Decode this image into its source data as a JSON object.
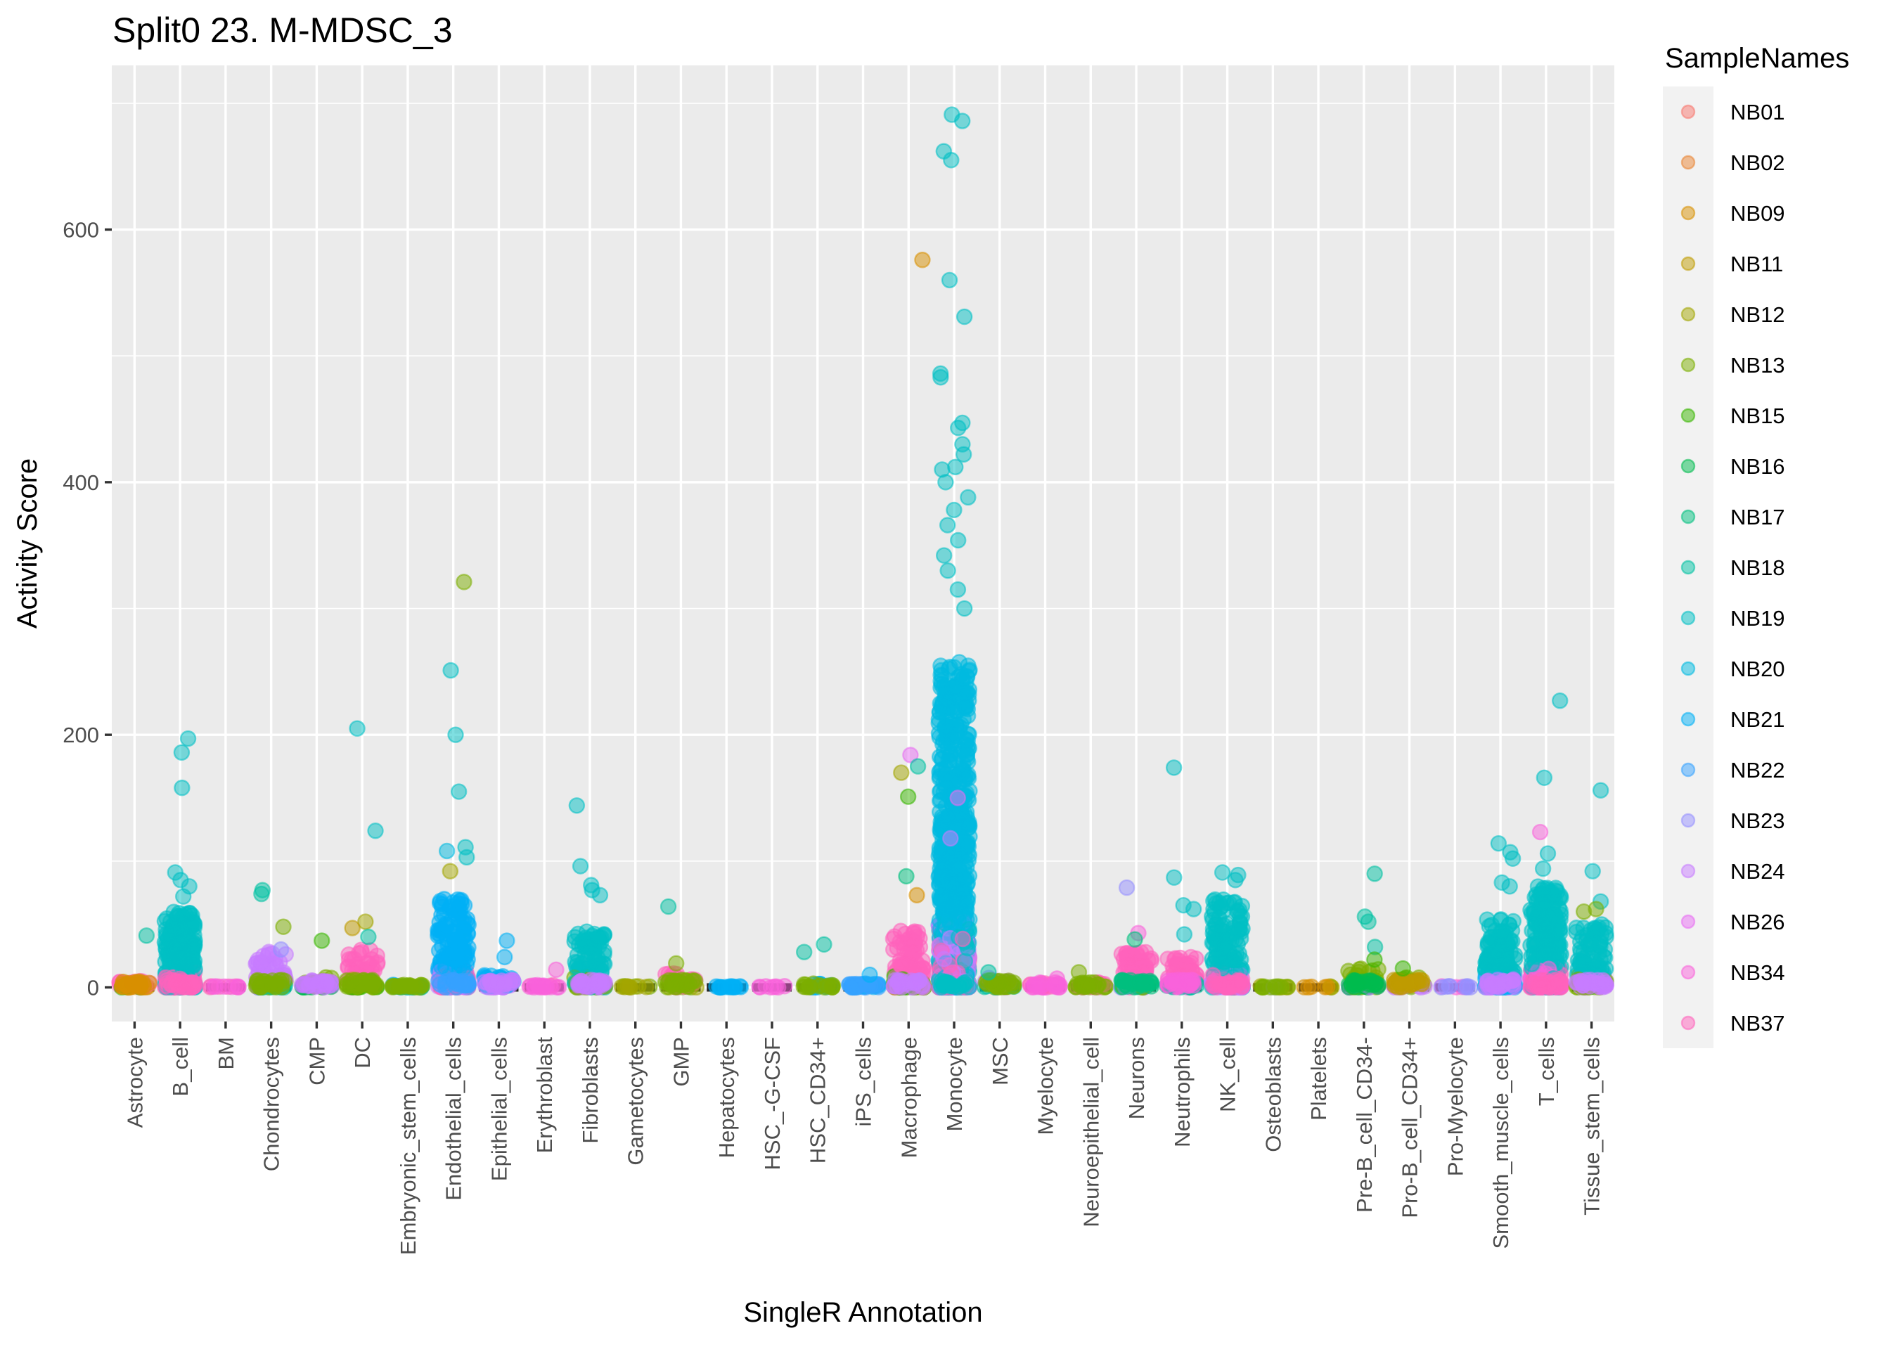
{
  "chart_data": {
    "type": "scatter",
    "subtype": "jitter-strip",
    "title": "Split0 23. M-MDSC_3",
    "xlabel": "SingleR Annotation",
    "ylabel": "Activity Score",
    "ylim": [
      -27,
      730
    ],
    "yticks": [
      0,
      200,
      400,
      600
    ],
    "ytick_labels": [
      "0",
      "200",
      "400",
      "600"
    ],
    "grid": true,
    "legend": {
      "title": "SampleNames",
      "position": "right",
      "entries": [
        {
          "name": "NB01",
          "color": "#F8766D"
        },
        {
          "name": "NB02",
          "color": "#EA8331"
        },
        {
          "name": "NB09",
          "color": "#D89000"
        },
        {
          "name": "NB11",
          "color": "#C09B00"
        },
        {
          "name": "NB12",
          "color": "#A3A500"
        },
        {
          "name": "NB13",
          "color": "#7CAE00"
        },
        {
          "name": "NB15",
          "color": "#39B600"
        },
        {
          "name": "NB16",
          "color": "#00BB4E"
        },
        {
          "name": "NB17",
          "color": "#00BF7D"
        },
        {
          "name": "NB18",
          "color": "#00C1A3"
        },
        {
          "name": "NB19",
          "color": "#00BFC4"
        },
        {
          "name": "NB20",
          "color": "#00BAE0"
        },
        {
          "name": "NB21",
          "color": "#00B0F6"
        },
        {
          "name": "NB22",
          "color": "#35A2FF"
        },
        {
          "name": "NB23",
          "color": "#9590FF"
        },
        {
          "name": "NB24",
          "color": "#C77CFF"
        },
        {
          "name": "NB26",
          "color": "#E76BF3"
        },
        {
          "name": "NB34",
          "color": "#FA62DB"
        },
        {
          "name": "NB37",
          "color": "#FF62BC"
        }
      ]
    },
    "categories": [
      "Astrocyte",
      "B_cell",
      "BM",
      "Chondrocytes",
      "CMP",
      "DC",
      "Embryonic_stem_cells",
      "Endothelial_cells",
      "Epithelial_cells",
      "Erythroblast",
      "Fibroblasts",
      "Gametocytes",
      "GMP",
      "Hepatocytes",
      "HSC_-G-CSF",
      "HSC_CD34+",
      "iPS_cells",
      "Macrophage",
      "Monocyte",
      "MSC",
      "Myelocyte",
      "Neuroepithelial_cell",
      "Neurons",
      "Neutrophils",
      "NK_cell",
      "Osteoblasts",
      "Platelets",
      "Pre-B_cell_CD34-",
      "Pro-B_cell_CD34+",
      "Pro-Myelocyte",
      "Smooth_muscle_cells",
      "T_cells",
      "Tissue_stem_cells"
    ],
    "groups": [
      {
        "category": "Astrocyte",
        "dense_max": 5,
        "n": 40,
        "main": [
          "NB37",
          "NB09",
          "NB15"
        ],
        "outliers": [
          {
            "y": 41,
            "sample": "NB18"
          }
        ]
      },
      {
        "category": "B_cell",
        "dense_max": 60,
        "n": 260,
        "main": [
          "NB19",
          "NB37"
        ],
        "outliers": [
          {
            "y": 197,
            "sample": "NB19"
          },
          {
            "y": 186,
            "sample": "NB19"
          },
          {
            "y": 158,
            "sample": "NB19"
          },
          {
            "y": 91,
            "sample": "NB19"
          },
          {
            "y": 85,
            "sample": "NB19"
          },
          {
            "y": 80,
            "sample": "NB19"
          },
          {
            "y": 72,
            "sample": "NB19"
          }
        ]
      },
      {
        "category": "BM",
        "dense_max": 1,
        "n": 6,
        "main": [
          "NB37",
          "NB34"
        ],
        "outliers": []
      },
      {
        "category": "Chondrocytes",
        "dense_max": 30,
        "n": 70,
        "main": [
          "NB24",
          "NB13",
          "NB18",
          "NB19"
        ],
        "outliers": [
          {
            "y": 77,
            "sample": "NB18"
          },
          {
            "y": 74,
            "sample": "NB18"
          },
          {
            "y": 48,
            "sample": "NB13"
          },
          {
            "y": 30,
            "sample": "NB23"
          }
        ]
      },
      {
        "category": "CMP",
        "dense_max": 8,
        "n": 30,
        "main": [
          "NB13",
          "NB24",
          "NB16"
        ],
        "outliers": [
          {
            "y": 37,
            "sample": "NB15"
          }
        ]
      },
      {
        "category": "DC",
        "dense_max": 30,
        "n": 70,
        "main": [
          "NB37",
          "NB13",
          "NB12",
          "NB15"
        ],
        "outliers": [
          {
            "y": 205,
            "sample": "NB19"
          },
          {
            "y": 124,
            "sample": "NB19"
          },
          {
            "y": 52,
            "sample": "NB12"
          },
          {
            "y": 47,
            "sample": "NB11"
          },
          {
            "y": 40,
            "sample": "NB18"
          }
        ]
      },
      {
        "category": "Embryonic_stem_cells",
        "dense_max": 2,
        "n": 20,
        "main": [
          "NB21",
          "NB13",
          "NB18"
        ],
        "outliers": []
      },
      {
        "category": "Endothelial_cells",
        "dense_max": 70,
        "n": 200,
        "main": [
          "NB21",
          "NB22",
          "NB24",
          "NB37"
        ],
        "outliers": [
          {
            "y": 321,
            "sample": "NB13"
          },
          {
            "y": 251,
            "sample": "NB19"
          },
          {
            "y": 200,
            "sample": "NB19"
          },
          {
            "y": 155,
            "sample": "NB19"
          },
          {
            "y": 111,
            "sample": "NB19"
          },
          {
            "y": 108,
            "sample": "NB20"
          },
          {
            "y": 103,
            "sample": "NB19"
          },
          {
            "y": 92,
            "sample": "NB12"
          }
        ]
      },
      {
        "category": "Epithelial_cells",
        "dense_max": 10,
        "n": 40,
        "main": [
          "NB21",
          "NB24"
        ],
        "outliers": [
          {
            "y": 37,
            "sample": "NB21"
          },
          {
            "y": 24,
            "sample": "NB21"
          }
        ]
      },
      {
        "category": "Erythroblast",
        "dense_max": 2,
        "n": 10,
        "main": [
          "NB37",
          "NB34"
        ],
        "outliers": [
          {
            "y": 14,
            "sample": "NB34"
          }
        ]
      },
      {
        "category": "Fibroblasts",
        "dense_max": 45,
        "n": 130,
        "main": [
          "NB19",
          "NB24",
          "NB13"
        ],
        "outliers": [
          {
            "y": 144,
            "sample": "NB19"
          },
          {
            "y": 96,
            "sample": "NB19"
          },
          {
            "y": 81,
            "sample": "NB19"
          },
          {
            "y": 77,
            "sample": "NB19"
          },
          {
            "y": 73,
            "sample": "NB19"
          }
        ]
      },
      {
        "category": "Gametocytes",
        "dense_max": 1,
        "n": 6,
        "main": [
          "NB13",
          "NB12"
        ],
        "outliers": []
      },
      {
        "category": "GMP",
        "dense_max": 12,
        "n": 30,
        "main": [
          "NB37",
          "NB13",
          "NB12"
        ],
        "outliers": [
          {
            "y": 64,
            "sample": "NB18"
          },
          {
            "y": 19,
            "sample": "NB13"
          }
        ]
      },
      {
        "category": "Hepatocytes",
        "dense_max": 1,
        "n": 8,
        "main": [
          "NB21"
        ],
        "outliers": []
      },
      {
        "category": "HSC_-G-CSF",
        "dense_max": 1,
        "n": 4,
        "main": [
          "NB34"
        ],
        "outliers": []
      },
      {
        "category": "HSC_CD34+",
        "dense_max": 3,
        "n": 15,
        "main": [
          "NB21",
          "NB13"
        ],
        "outliers": [
          {
            "y": 34,
            "sample": "NB18"
          },
          {
            "y": 28,
            "sample": "NB18"
          }
        ]
      },
      {
        "category": "iPS_cells",
        "dense_max": 3,
        "n": 20,
        "main": [
          "NB21",
          "NB22"
        ],
        "outliers": [
          {
            "y": 10,
            "sample": "NB21"
          }
        ]
      },
      {
        "category": "Macrophage",
        "dense_max": 45,
        "n": 160,
        "main": [
          "NB37",
          "NB24",
          "NB13",
          "NB11",
          "NB15"
        ],
        "outliers": [
          {
            "y": 576,
            "sample": "NB09"
          },
          {
            "y": 184,
            "sample": "NB26"
          },
          {
            "y": 175,
            "sample": "NB18"
          },
          {
            "y": 170,
            "sample": "NB12"
          },
          {
            "y": 151,
            "sample": "NB15"
          },
          {
            "y": 88,
            "sample": "NB17"
          },
          {
            "y": 73,
            "sample": "NB09"
          }
        ]
      },
      {
        "category": "Monocyte",
        "dense_max": 260,
        "n": 900,
        "main": [
          "NB20",
          "NB19",
          "NB37",
          "NB24"
        ],
        "outliers": [
          {
            "y": 691,
            "sample": "NB19"
          },
          {
            "y": 686,
            "sample": "NB19"
          },
          {
            "y": 662,
            "sample": "NB19"
          },
          {
            "y": 655,
            "sample": "NB19"
          },
          {
            "y": 560,
            "sample": "NB19"
          },
          {
            "y": 531,
            "sample": "NB19"
          },
          {
            "y": 486,
            "sample": "NB19"
          },
          {
            "y": 483,
            "sample": "NB19"
          },
          {
            "y": 447,
            "sample": "NB19"
          },
          {
            "y": 443,
            "sample": "NB19"
          },
          {
            "y": 430,
            "sample": "NB19"
          },
          {
            "y": 422,
            "sample": "NB19"
          },
          {
            "y": 412,
            "sample": "NB19"
          },
          {
            "y": 410,
            "sample": "NB19"
          },
          {
            "y": 400,
            "sample": "NB19"
          },
          {
            "y": 388,
            "sample": "NB19"
          },
          {
            "y": 378,
            "sample": "NB19"
          },
          {
            "y": 366,
            "sample": "NB19"
          },
          {
            "y": 354,
            "sample": "NB19"
          },
          {
            "y": 342,
            "sample": "NB19"
          },
          {
            "y": 330,
            "sample": "NB19"
          },
          {
            "y": 315,
            "sample": "NB19"
          },
          {
            "y": 300,
            "sample": "NB19"
          },
          {
            "y": 150,
            "sample": "NB26"
          },
          {
            "y": 118,
            "sample": "NB24"
          }
        ]
      },
      {
        "category": "MSC",
        "dense_max": 8,
        "n": 30,
        "main": [
          "NB24",
          "NB13",
          "NB18"
        ],
        "outliers": [
          {
            "y": 12,
            "sample": "NB18"
          }
        ]
      },
      {
        "category": "Myelocyte",
        "dense_max": 4,
        "n": 15,
        "main": [
          "NB37",
          "NB34"
        ],
        "outliers": [
          {
            "y": 7,
            "sample": "NB34"
          }
        ]
      },
      {
        "category": "Neuroepithelial_cell",
        "dense_max": 4,
        "n": 20,
        "main": [
          "NB37",
          "NB13"
        ],
        "outliers": [
          {
            "y": 12,
            "sample": "NB13"
          }
        ]
      },
      {
        "category": "Neurons",
        "dense_max": 30,
        "n": 90,
        "main": [
          "NB37",
          "NB17",
          "NB23",
          "NB13"
        ],
        "outliers": [
          {
            "y": 79,
            "sample": "NB23"
          },
          {
            "y": 43,
            "sample": "NB34"
          },
          {
            "y": 38,
            "sample": "NB17"
          }
        ]
      },
      {
        "category": "Neutrophils",
        "dense_max": 25,
        "n": 70,
        "main": [
          "NB37",
          "NB34",
          "NB18"
        ],
        "outliers": [
          {
            "y": 174,
            "sample": "NB19"
          },
          {
            "y": 87,
            "sample": "NB19"
          },
          {
            "y": 65,
            "sample": "NB19"
          },
          {
            "y": 62,
            "sample": "NB19"
          },
          {
            "y": 42,
            "sample": "NB19"
          }
        ]
      },
      {
        "category": "NK_cell",
        "dense_max": 70,
        "n": 200,
        "main": [
          "NB19",
          "NB37",
          "NB24"
        ],
        "outliers": [
          {
            "y": 91,
            "sample": "NB19"
          },
          {
            "y": 89,
            "sample": "NB19"
          },
          {
            "y": 85,
            "sample": "NB19"
          }
        ]
      },
      {
        "category": "Osteoblasts",
        "dense_max": 1,
        "n": 8,
        "main": [
          "NB12",
          "NB13",
          "NB23"
        ],
        "outliers": []
      },
      {
        "category": "Platelets",
        "dense_max": 1,
        "n": 4,
        "main": [
          "NB12",
          "NB09"
        ],
        "outliers": []
      },
      {
        "category": "Pre-B_cell_CD34-",
        "dense_max": 15,
        "n": 50,
        "main": [
          "NB13",
          "NB16",
          "NB24"
        ],
        "outliers": [
          {
            "y": 90,
            "sample": "NB18"
          },
          {
            "y": 56,
            "sample": "NB18"
          },
          {
            "y": 52,
            "sample": "NB18"
          },
          {
            "y": 32,
            "sample": "NB18"
          },
          {
            "y": 22,
            "sample": "NB15"
          }
        ]
      },
      {
        "category": "Pro-B_cell_CD34+",
        "dense_max": 10,
        "n": 30,
        "main": [
          "NB13",
          "NB11",
          "NB24"
        ],
        "outliers": [
          {
            "y": 15,
            "sample": "NB15"
          }
        ]
      },
      {
        "category": "Pro-Myelocyte",
        "dense_max": 1,
        "n": 6,
        "main": [
          "NB34",
          "NB23"
        ],
        "outliers": []
      },
      {
        "category": "Smooth_muscle_cells",
        "dense_max": 55,
        "n": 170,
        "main": [
          "NB19",
          "NB24",
          "NB21"
        ],
        "outliers": [
          {
            "y": 114,
            "sample": "NB19"
          },
          {
            "y": 107,
            "sample": "NB19"
          },
          {
            "y": 102,
            "sample": "NB19"
          },
          {
            "y": 83,
            "sample": "NB19"
          },
          {
            "y": 80,
            "sample": "NB19"
          }
        ]
      },
      {
        "category": "T_cells",
        "dense_max": 80,
        "n": 320,
        "main": [
          "NB19",
          "NB37",
          "NB34"
        ],
        "outliers": [
          {
            "y": 227,
            "sample": "NB19"
          },
          {
            "y": 166,
            "sample": "NB19"
          },
          {
            "y": 123,
            "sample": "NB34"
          },
          {
            "y": 106,
            "sample": "NB19"
          },
          {
            "y": 94,
            "sample": "NB19"
          }
        ]
      },
      {
        "category": "Tissue_stem_cells",
        "dense_max": 50,
        "n": 150,
        "main": [
          "NB19",
          "NB24",
          "NB13"
        ],
        "outliers": [
          {
            "y": 156,
            "sample": "NB19"
          },
          {
            "y": 92,
            "sample": "NB19"
          },
          {
            "y": 68,
            "sample": "NB19"
          },
          {
            "y": 62,
            "sample": "NB13"
          },
          {
            "y": 60,
            "sample": "NB13"
          }
        ]
      }
    ]
  }
}
